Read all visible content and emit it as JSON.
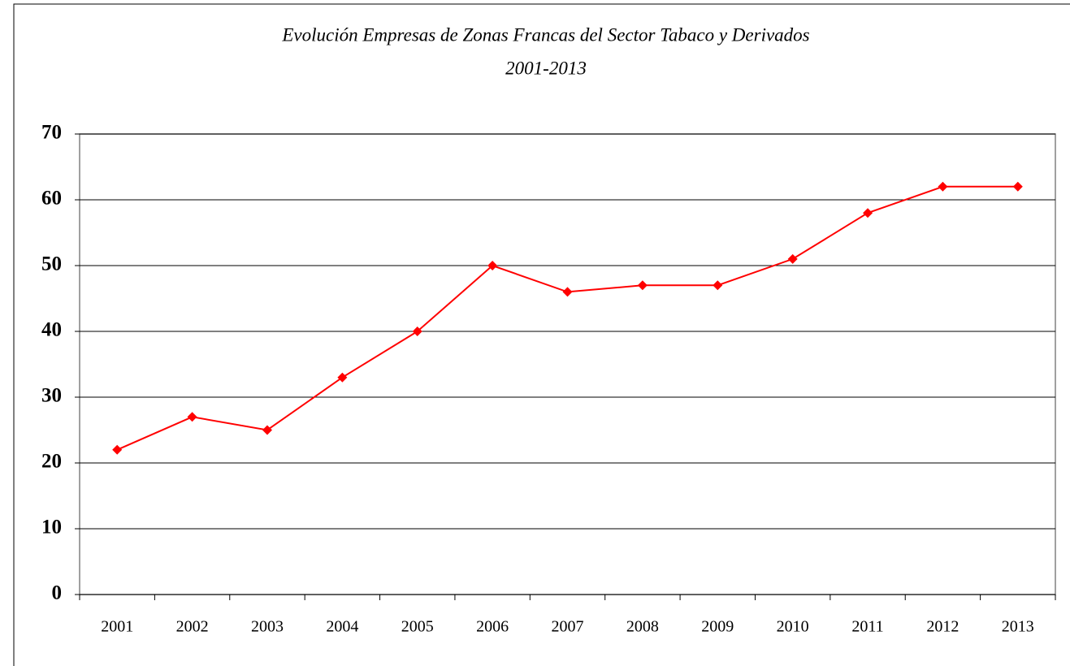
{
  "chart_data": {
    "type": "line",
    "title": "Evolución Empresas de Zonas Francas del Sector Tabaco y Derivados",
    "subtitle": "2001-2013",
    "categories": [
      "2001",
      "2002",
      "2003",
      "2004",
      "2005",
      "2006",
      "2007",
      "2008",
      "2009",
      "2010",
      "2011",
      "2012",
      "2013"
    ],
    "values": [
      22,
      27,
      25,
      33,
      40,
      50,
      46,
      47,
      47,
      51,
      58,
      62,
      62
    ],
    "color": "#ff0000",
    "ylim": [
      0,
      70
    ],
    "yticks": [
      0,
      10,
      20,
      30,
      40,
      50,
      60,
      70
    ],
    "grid": true
  }
}
